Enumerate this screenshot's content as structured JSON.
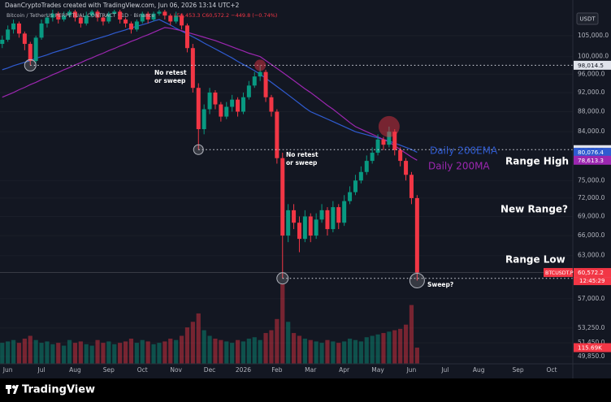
{
  "header": "DaanCryptoTrades created with TradingView.com, Jun 06, 2026 13:14 UTC+2",
  "footer": "TradingView",
  "chart_data": {
    "type": "candlestick",
    "title": "Bitcoin / TetherUS PERPETUAL CONTRACT · 1D · Binance",
    "legend_values": "L59,453.3 C60,572.2 −449.8 (−0.74%)",
    "currency": "USDT",
    "log_scale": true,
    "grid": true,
    "up_color": "#089981",
    "down_color": "#f23645",
    "categories": [
      null,
      "Jun",
      null,
      null,
      null,
      null,
      null,
      "Jul",
      null,
      null,
      null,
      null,
      null,
      "Aug",
      null,
      null,
      null,
      null,
      null,
      "Sep",
      null,
      null,
      null,
      null,
      null,
      "Oct",
      null,
      null,
      null,
      null,
      null,
      "Nov",
      null,
      null,
      null,
      null,
      null,
      "Dec",
      null,
      null,
      null,
      null,
      null,
      "2026",
      null,
      null,
      null,
      null,
      null,
      "Feb",
      null,
      null,
      null,
      null,
      null,
      "Mar",
      null,
      null,
      null,
      null,
      null,
      "Apr",
      null,
      null,
      null,
      null,
      null,
      "May",
      null,
      null,
      null,
      null,
      null,
      "Jun",
      null,
      null,
      null,
      null,
      null,
      "Jul",
      null,
      null,
      null,
      null,
      null,
      "Aug",
      null,
      null,
      null,
      null,
      null,
      null,
      "Sep",
      null,
      null,
      null,
      null,
      null,
      "Oct"
    ],
    "open": [
      103000,
      104000,
      106500,
      108000,
      105500,
      103000,
      99000,
      104500,
      108000,
      109500,
      110500,
      109000,
      110000,
      111000,
      109500,
      108000,
      110000,
      111000,
      109500,
      108500,
      110500,
      111000,
      109000,
      108000,
      106500,
      108500,
      110500,
      109000,
      110500,
      111000,
      110000,
      108500,
      110000,
      107500,
      102000,
      93000,
      84500,
      88500,
      92000,
      89500,
      87000,
      89000,
      90500,
      88000,
      91000,
      93500,
      95500,
      96500,
      91000,
      88000,
      79000,
      66000,
      70000,
      68000,
      65500,
      69000,
      66000,
      68500,
      70000,
      67000,
      70500,
      68000,
      71500,
      73000,
      75000,
      76500,
      78500,
      80000,
      82500,
      81500,
      84000,
      80500,
      78500,
      76000,
      72000,
      null,
      null,
      null,
      null,
      null,
      null,
      null,
      null,
      null,
      null,
      null,
      null,
      null,
      null,
      null,
      null,
      null,
      null,
      null,
      null,
      null,
      null,
      null,
      null
    ],
    "high": [
      105000,
      107500,
      109000,
      108500,
      106000,
      103500,
      105000,
      109000,
      110500,
      111500,
      111000,
      111000,
      111500,
      111500,
      110000,
      111000,
      111500,
      111500,
      110000,
      111000,
      111500,
      111500,
      109500,
      108500,
      109000,
      111000,
      111000,
      111000,
      111500,
      111500,
      110500,
      111000,
      110500,
      108000,
      103000,
      94000,
      89500,
      93000,
      92500,
      90000,
      90000,
      91500,
      91000,
      92000,
      94500,
      96500,
      98000,
      97000,
      91500,
      88500,
      80000,
      71000,
      71000,
      69000,
      70000,
      69500,
      69500,
      71000,
      70500,
      71500,
      71000,
      72500,
      74000,
      76000,
      77500,
      79500,
      81000,
      83500,
      83000,
      85000,
      84500,
      81000,
      79000,
      76500,
      72500,
      null,
      null,
      null,
      null,
      null,
      null,
      null,
      null,
      null,
      null,
      null,
      null,
      null,
      null,
      null,
      null,
      null,
      null,
      null,
      null,
      null,
      null,
      null,
      null
    ],
    "low": [
      102000,
      103500,
      105500,
      104500,
      101500,
      98000,
      98500,
      104000,
      107000,
      108500,
      108000,
      108500,
      109500,
      108500,
      107000,
      107500,
      109500,
      108500,
      107500,
      108000,
      110000,
      108000,
      107000,
      105500,
      106000,
      108000,
      108000,
      108500,
      110000,
      109000,
      107500,
      108000,
      106500,
      101000,
      92000,
      80574.7,
      83500,
      87500,
      88500,
      86000,
      86500,
      88000,
      87000,
      87500,
      90500,
      93000,
      94500,
      90000,
      87000,
      78000,
      59757,
      65000,
      67000,
      63500,
      65000,
      65000,
      65500,
      68000,
      66000,
      66500,
      67000,
      67500,
      71000,
      72500,
      74500,
      76000,
      78000,
      79500,
      80500,
      81000,
      79500,
      77500,
      75000,
      71000,
      59453.3,
      null,
      null,
      null,
      null,
      null,
      null,
      null,
      null,
      null,
      null,
      null,
      null,
      null,
      null,
      null,
      null,
      null,
      null,
      null,
      null,
      null,
      null,
      null,
      null
    ],
    "close": [
      104000,
      106500,
      108000,
      105500,
      103000,
      99000,
      104500,
      108000,
      109500,
      110500,
      109000,
      110000,
      111000,
      109500,
      108000,
      110000,
      111000,
      109500,
      108500,
      110500,
      111000,
      109000,
      108000,
      106500,
      108500,
      110500,
      109000,
      110500,
      111000,
      110000,
      108500,
      110000,
      107500,
      102000,
      93000,
      84500,
      88500,
      92000,
      89500,
      87000,
      89000,
      90500,
      88000,
      91000,
      93500,
      95500,
      96500,
      91000,
      88000,
      79000,
      66000,
      70000,
      68000,
      65500,
      69000,
      66000,
      68500,
      70000,
      67000,
      70500,
      68000,
      71500,
      73000,
      75000,
      76500,
      78500,
      80000,
      82500,
      81500,
      84000,
      80500,
      78500,
      76000,
      72000,
      60572.2,
      null,
      null,
      null,
      null,
      null,
      null,
      null,
      null,
      null,
      null,
      null,
      null,
      null,
      null,
      null,
      null,
      null,
      null,
      null,
      null,
      null,
      null,
      null,
      null
    ],
    "close_label": "60,572.2",
    "symbol_label": "BTCUSDT.P",
    "countdown": "12:45:29",
    "volume": {
      "ylim": [
        0,
        580
      ],
      "last_label": "115.69K",
      "values": [
        150,
        160,
        170,
        150,
        180,
        200,
        170,
        150,
        160,
        140,
        150,
        130,
        170,
        150,
        160,
        140,
        130,
        170,
        150,
        160,
        140,
        150,
        160,
        180,
        150,
        170,
        160,
        140,
        150,
        160,
        180,
        170,
        200,
        260,
        300,
        360,
        240,
        200,
        180,
        170,
        160,
        150,
        170,
        160,
        180,
        190,
        170,
        220,
        240,
        320,
        570,
        300,
        220,
        200,
        180,
        170,
        160,
        150,
        170,
        160,
        150,
        160,
        180,
        170,
        160,
        190,
        200,
        210,
        220,
        230,
        240,
        250,
        280,
        420,
        115.69,
        null,
        null,
        null,
        null,
        null,
        null,
        null,
        null,
        null,
        null,
        null,
        null,
        null,
        null,
        null,
        null,
        null,
        null,
        null,
        null,
        null,
        null,
        null,
        null
      ]
    },
    "series": [
      {
        "name": "Daily 200EMA",
        "color": "#2f5bd0",
        "last_label": "80,076.4",
        "values": [
          97000,
          97400,
          97900,
          98300,
          98700,
          99100,
          99600,
          100000,
          100400,
          100900,
          101300,
          101700,
          102100,
          102600,
          103000,
          103400,
          103900,
          104300,
          104700,
          105100,
          105600,
          106000,
          106400,
          106900,
          107300,
          107700,
          108100,
          108600,
          109000,
          108300,
          107600,
          106800,
          106100,
          105400,
          104700,
          104000,
          103200,
          102500,
          101800,
          101100,
          100400,
          99700,
          98900,
          98200,
          97500,
          96800,
          96000,
          95100,
          94200,
          93300,
          92400,
          91500,
          90600,
          89700,
          88800,
          88000,
          87500,
          87000,
          86500,
          86000,
          85500,
          85000,
          84500,
          84000,
          83700,
          83400,
          83100,
          82800,
          82500,
          82200,
          81800,
          81400,
          81000,
          80600,
          80076.4,
          null,
          null,
          null,
          null,
          null,
          null,
          null,
          null,
          null,
          null,
          null,
          null,
          null,
          null,
          null,
          null,
          null,
          null,
          null,
          null,
          null,
          null,
          null,
          null
        ]
      },
      {
        "name": "Daily 200MA",
        "color": "#9c27b0",
        "last_label": "78,613.3",
        "values": [
          91000,
          91500,
          92000,
          92600,
          93100,
          93700,
          94200,
          94800,
          95300,
          95900,
          96400,
          97000,
          97500,
          98100,
          98600,
          99200,
          99700,
          100300,
          100800,
          101400,
          101900,
          102500,
          103000,
          103600,
          104100,
          104700,
          105200,
          105800,
          106400,
          107000,
          106800,
          106500,
          106200,
          105800,
          105400,
          105000,
          104600,
          104200,
          103800,
          103300,
          102800,
          102300,
          101800,
          101300,
          100800,
          100400,
          100000,
          99100,
          98200,
          97300,
          96400,
          95500,
          94600,
          93700,
          92800,
          92000,
          91100,
          90200,
          89300,
          88500,
          87600,
          86700,
          85800,
          85000,
          84500,
          84000,
          83500,
          83000,
          82500,
          82000,
          81300,
          80600,
          79900,
          79200,
          78613.3,
          null,
          null,
          null,
          null,
          null,
          null,
          null,
          null,
          null,
          null,
          null,
          null,
          null,
          null,
          null,
          null,
          null,
          null,
          null,
          null,
          null,
          null,
          null,
          null
        ]
      }
    ],
    "ylim": [
      49000,
      111500
    ],
    "yticks": [
      {
        "value": 105000,
        "label": "105,000.0"
      },
      {
        "value": 100000,
        "label": "100,000.0"
      },
      {
        "value": 96000,
        "label": "96,000.0"
      },
      {
        "value": 92000,
        "label": "92,000.0"
      },
      {
        "value": 88000,
        "label": "88,000.0"
      },
      {
        "value": 84000,
        "label": "84,000.0"
      },
      {
        "value": 75000,
        "label": "75,000.0"
      },
      {
        "value": 72000,
        "label": "72,000.0"
      },
      {
        "value": 69000,
        "label": "69,000.0"
      },
      {
        "value": 66000,
        "label": "66,000.0"
      },
      {
        "value": 63000,
        "label": "63,000.0"
      },
      {
        "value": 57000,
        "label": "57,000.0"
      },
      {
        "value": 53250,
        "label": "53,250.0"
      },
      {
        "value": 51450,
        "label": "51,450.0"
      },
      {
        "value": 49850,
        "label": "49,850.0"
      }
    ],
    "levels": [
      {
        "value": 98014.5,
        "label": "98,014.5"
      },
      {
        "value": 80574.7,
        "label": "80,574.7"
      },
      {
        "value": 59757,
        "label": "59,757.0"
      }
    ],
    "annotations": [
      "No retest",
      "or sweep",
      "No retest",
      "or sweep",
      "Range High",
      "New Range?",
      "Range Low",
      "Sweep?"
    ]
  }
}
